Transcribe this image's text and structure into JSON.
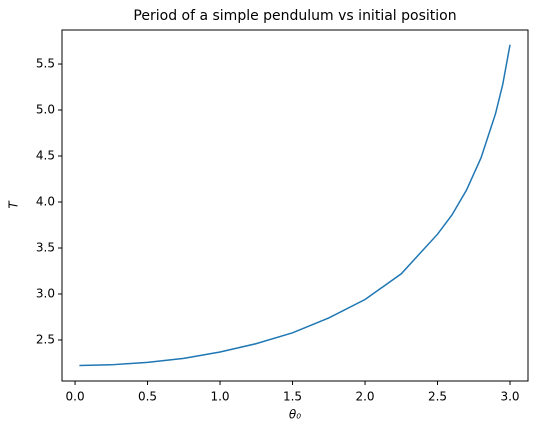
{
  "chart_data": {
    "type": "line",
    "title": "Period of a simple pendulum vs initial position",
    "xlabel": "θ₀",
    "ylabel": "T",
    "x": [
      0.03,
      0.25,
      0.5,
      0.75,
      1.0,
      1.25,
      1.5,
      1.75,
      2.0,
      2.25,
      2.5,
      2.6,
      2.7,
      2.8,
      2.9,
      2.95,
      3.0
    ],
    "series": [
      {
        "name": "T",
        "color": "#1f77b4",
        "values": [
          2.222,
          2.23,
          2.257,
          2.3,
          2.369,
          2.46,
          2.578,
          2.74,
          2.94,
          3.22,
          3.65,
          3.86,
          4.13,
          4.48,
          4.96,
          5.28,
          5.71
        ]
      }
    ],
    "xlim": [
      -0.09,
      3.124
    ],
    "ylim": [
      2.054,
      5.87
    ],
    "xticks": [
      {
        "value": 0,
        "label": "0.0"
      },
      0.5,
      {
        "value": 1,
        "label": "1.0"
      },
      1.5,
      {
        "value": 2,
        "label": "2.0"
      },
      2.5,
      {
        "value": 3,
        "label": "3.0"
      }
    ],
    "yticks": [
      2.5,
      {
        "value": 3,
        "label": "3.0"
      },
      3.5,
      {
        "value": 4,
        "label": "4.0"
      },
      4.5,
      {
        "value": 5,
        "label": "5.0"
      },
      5.5
    ],
    "grid": false
  }
}
